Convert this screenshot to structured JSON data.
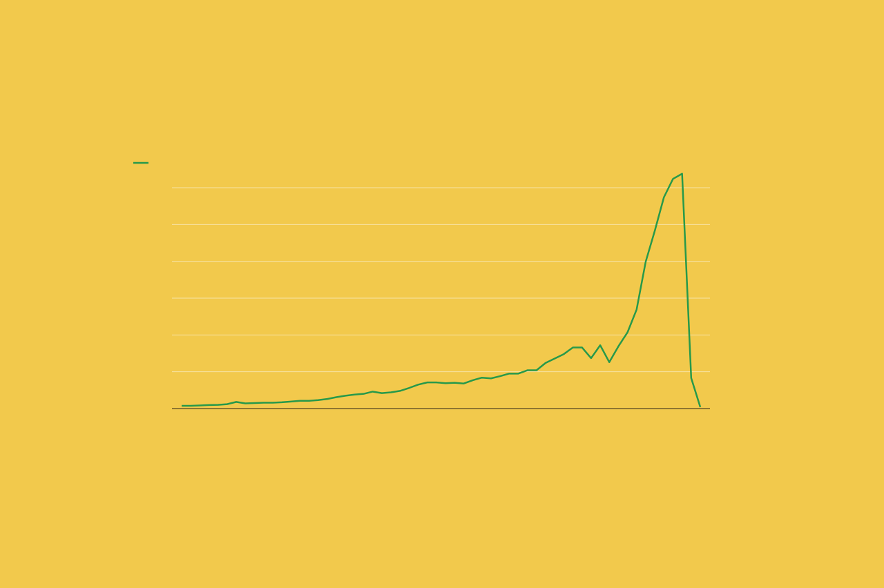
{
  "chart_data": {
    "type": "line",
    "series": [
      {
        "color": "#27994a",
        "values": [
          0.75,
          0.75,
          0.85,
          0.95,
          1.0,
          1.2,
          1.8,
          1.4,
          1.5,
          1.6,
          1.6,
          1.7,
          1.9,
          2.1,
          2.1,
          2.3,
          2.6,
          3.1,
          3.5,
          3.8,
          4.0,
          4.6,
          4.2,
          4.4,
          4.8,
          5.6,
          6.5,
          7.1,
          7.1,
          6.9,
          7.0,
          6.8,
          7.7,
          8.4,
          8.2,
          8.8,
          9.5,
          9.5,
          10.4,
          10.4,
          12.4,
          13.6,
          14.8,
          16.6,
          16.6,
          13.7,
          17.2,
          12.6,
          16.9,
          20.7,
          26.9,
          39.9,
          48.3,
          57.4,
          62.4,
          63.8,
          8.3,
          0.4
        ]
      }
    ],
    "ylim": [
      0,
      60
    ],
    "yticks": [
      0,
      10,
      20,
      30,
      40,
      50,
      60
    ],
    "grid": true
  }
}
